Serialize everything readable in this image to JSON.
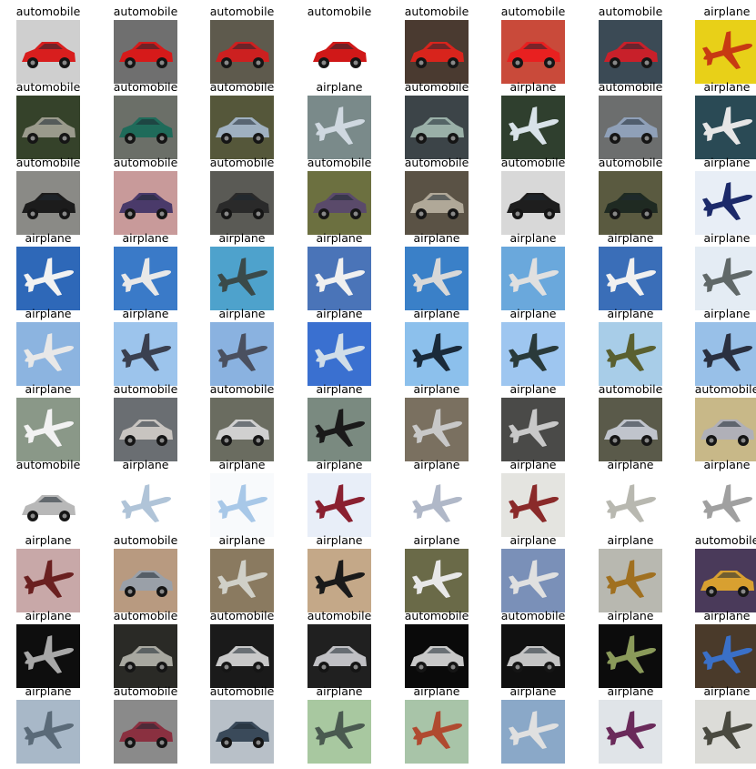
{
  "grid": {
    "columns": 8,
    "rows": [
      [
        {
          "label": "automobile",
          "icon": "car-icon",
          "bg": "#cfcfcf",
          "fg": "#d81e1e"
        },
        {
          "label": "automobile",
          "icon": "car-icon",
          "bg": "#6f6f6f",
          "fg": "#d61a1a"
        },
        {
          "label": "automobile",
          "icon": "car-icon",
          "bg": "#5e5a4d",
          "fg": "#cc2020"
        },
        {
          "label": "automobile",
          "icon": "car-icon",
          "bg": "#ffffff",
          "fg": "#d01818"
        },
        {
          "label": "automobile",
          "icon": "car-icon",
          "bg": "#4a3a30",
          "fg": "#d8241c"
        },
        {
          "label": "automobile",
          "icon": "car-icon",
          "bg": "#c94a3a",
          "fg": "#e82020"
        },
        {
          "label": "automobile",
          "icon": "car-icon",
          "bg": "#3b4a55",
          "fg": "#c8202a"
        },
        {
          "label": "airplane",
          "icon": "airplane-icon",
          "bg": "#e8d018",
          "fg": "#c73a12"
        }
      ],
      [
        {
          "label": "automobile",
          "icon": "car-icon",
          "bg": "#35422a",
          "fg": "#9a9a8c"
        },
        {
          "label": "automobile",
          "icon": "car-icon",
          "bg": "#6b6f68",
          "fg": "#1f6b5a"
        },
        {
          "label": "automobile",
          "icon": "car-icon",
          "bg": "#55573a",
          "fg": "#9fb0c0"
        },
        {
          "label": "airplane",
          "icon": "airplane-icon",
          "bg": "#7a8a8a",
          "fg": "#cfd8e0"
        },
        {
          "label": "automobile",
          "icon": "car-icon",
          "bg": "#3c4448",
          "fg": "#9ab0a8"
        },
        {
          "label": "airplane",
          "icon": "airplane-icon",
          "bg": "#2f3f2e",
          "fg": "#d8e2e8"
        },
        {
          "label": "automobile",
          "icon": "car-icon",
          "bg": "#6c6e6e",
          "fg": "#8fa0b8"
        },
        {
          "label": "airplane",
          "icon": "airplane-icon",
          "bg": "#2a4a55",
          "fg": "#e6e6e6"
        }
      ],
      [
        {
          "label": "automobile",
          "icon": "car-icon",
          "bg": "#8a8a86",
          "fg": "#1c1c1c"
        },
        {
          "label": "automobile",
          "icon": "car-icon",
          "bg": "#c89a9a",
          "fg": "#4a3a6a"
        },
        {
          "label": "automobile",
          "icon": "car-icon",
          "bg": "#5a5a55",
          "fg": "#2a2a2a"
        },
        {
          "label": "automobile",
          "icon": "car-icon",
          "bg": "#6c7040",
          "fg": "#5a4a6a"
        },
        {
          "label": "automobile",
          "icon": "car-icon",
          "bg": "#5a5245",
          "fg": "#b0a898"
        },
        {
          "label": "automobile",
          "icon": "car-icon",
          "bg": "#d8d8d8",
          "fg": "#1e1e1e"
        },
        {
          "label": "automobile",
          "icon": "car-icon",
          "bg": "#5a5a40",
          "fg": "#1f2a22"
        },
        {
          "label": "airplane",
          "icon": "airplane-icon",
          "bg": "#e8eef6",
          "fg": "#1c2a6a"
        }
      ],
      [
        {
          "label": "airplane",
          "icon": "airplane-icon",
          "bg": "#2e68b8",
          "fg": "#f2f2f2"
        },
        {
          "label": "airplane",
          "icon": "airplane-icon",
          "bg": "#3a7ac8",
          "fg": "#e8e8e8"
        },
        {
          "label": "airplane",
          "icon": "airplane-icon",
          "bg": "#4ea2cc",
          "fg": "#3a4a4a"
        },
        {
          "label": "airplane",
          "icon": "airplane-icon",
          "bg": "#4a74b8",
          "fg": "#f0f0f0"
        },
        {
          "label": "airplane",
          "icon": "airplane-icon",
          "bg": "#3a80c8",
          "fg": "#d8d8d8"
        },
        {
          "label": "airplane",
          "icon": "airplane-icon",
          "bg": "#6aa8dc",
          "fg": "#e0e0e0"
        },
        {
          "label": "airplane",
          "icon": "airplane-icon",
          "bg": "#3a6eb8",
          "fg": "#f0f0f0"
        },
        {
          "label": "airplane",
          "icon": "airplane-icon",
          "bg": "#e4ecf4",
          "fg": "#606868"
        }
      ],
      [
        {
          "label": "airplane",
          "icon": "airplane-icon",
          "bg": "#8cb4e0",
          "fg": "#e8e8e8"
        },
        {
          "label": "airplane",
          "icon": "airplane-icon",
          "bg": "#9cc4ec",
          "fg": "#3a4050"
        },
        {
          "label": "airplane",
          "icon": "airplane-icon",
          "bg": "#8ab2e0",
          "fg": "#4a5060"
        },
        {
          "label": "airplane",
          "icon": "airplane-icon",
          "bg": "#3a70d0",
          "fg": "#d0dde8"
        },
        {
          "label": "airplane",
          "icon": "airplane-icon",
          "bg": "#8cc0ec",
          "fg": "#1a2a3a"
        },
        {
          "label": "airplane",
          "icon": "airplane-icon",
          "bg": "#9ec6f0",
          "fg": "#2a3a3a"
        },
        {
          "label": "airplane",
          "icon": "airplane-icon",
          "bg": "#a8cde8",
          "fg": "#5a6030"
        },
        {
          "label": "airplane",
          "icon": "airplane-icon",
          "bg": "#98c0e8",
          "fg": "#2a3040"
        }
      ],
      [
        {
          "label": "airplane",
          "icon": "airplane-icon",
          "bg": "#8a9888",
          "fg": "#f2f2f2"
        },
        {
          "label": "automobile",
          "icon": "car-icon",
          "bg": "#6a6e72",
          "fg": "#c8c4c0"
        },
        {
          "label": "automobile",
          "icon": "car-icon",
          "bg": "#6a6c60",
          "fg": "#d0d0d0"
        },
        {
          "label": "airplane",
          "icon": "airplane-icon",
          "bg": "#7a8a80",
          "fg": "#1a1a1a"
        },
        {
          "label": "airplane",
          "icon": "airplane-icon",
          "bg": "#7a7060",
          "fg": "#c8c8c8"
        },
        {
          "label": "airplane",
          "icon": "airplane-icon",
          "bg": "#4a4a48",
          "fg": "#c8c8c8"
        },
        {
          "label": "automobile",
          "icon": "car-icon",
          "bg": "#5a5a4a",
          "fg": "#c0c4cc"
        },
        {
          "label": "automobile",
          "icon": "car-icon",
          "bg": "#c8b888",
          "fg": "#b0b0b8"
        }
      ],
      [
        {
          "label": "automobile",
          "icon": "car-icon",
          "bg": "#ffffff",
          "fg": "#b8b8b8"
        },
        {
          "label": "airplane",
          "icon": "airplane-icon",
          "bg": "#ffffff",
          "fg": "#b0c4d8"
        },
        {
          "label": "airplane",
          "icon": "airplane-icon",
          "bg": "#f8fafc",
          "fg": "#a8c8e8"
        },
        {
          "label": "airplane",
          "icon": "airplane-icon",
          "bg": "#e8eef8",
          "fg": "#8a2030"
        },
        {
          "label": "airplane",
          "icon": "airplane-icon",
          "bg": "#ffffff",
          "fg": "#b0b8c8"
        },
        {
          "label": "airplane",
          "icon": "airplane-icon",
          "bg": "#e4e4e0",
          "fg": "#8a2a2a"
        },
        {
          "label": "airplane",
          "icon": "airplane-icon",
          "bg": "#ffffff",
          "fg": "#b8b8b0"
        },
        {
          "label": "airplane",
          "icon": "airplane-icon",
          "bg": "#ffffff",
          "fg": "#a0a0a0"
        }
      ],
      [
        {
          "label": "airplane",
          "icon": "airplane-icon",
          "bg": "#c8a8a8",
          "fg": "#6a2020"
        },
        {
          "label": "automobile",
          "icon": "car-icon",
          "bg": "#b89a80",
          "fg": "#9aa0a8"
        },
        {
          "label": "airplane",
          "icon": "airplane-icon",
          "bg": "#8a7a60",
          "fg": "#d0d0c8"
        },
        {
          "label": "airplane",
          "icon": "airplane-icon",
          "bg": "#c4a888",
          "fg": "#1a1a1a"
        },
        {
          "label": "airplane",
          "icon": "airplane-icon",
          "bg": "#6a6a48",
          "fg": "#e8e8e8"
        },
        {
          "label": "airplane",
          "icon": "airplane-icon",
          "bg": "#7a90b8",
          "fg": "#e0e0e0"
        },
        {
          "label": "airplane",
          "icon": "airplane-icon",
          "bg": "#b8b8b0",
          "fg": "#a07020"
        },
        {
          "label": "automobile",
          "icon": "car-icon",
          "bg": "#4a3a5a",
          "fg": "#d8a030"
        }
      ],
      [
        {
          "label": "airplane",
          "icon": "airplane-icon",
          "bg": "#0e0e0e",
          "fg": "#a8a8a8"
        },
        {
          "label": "automobile",
          "icon": "car-icon",
          "bg": "#2a2a26",
          "fg": "#a8a8a0"
        },
        {
          "label": "automobile",
          "icon": "car-icon",
          "bg": "#1a1a1a",
          "fg": "#c8c8c8"
        },
        {
          "label": "automobile",
          "icon": "car-icon",
          "bg": "#202020",
          "fg": "#c0c0c4"
        },
        {
          "label": "automobile",
          "icon": "car-icon",
          "bg": "#0a0a0a",
          "fg": "#c8c8c8"
        },
        {
          "label": "automobile",
          "icon": "car-icon",
          "bg": "#101010",
          "fg": "#c4c4c4"
        },
        {
          "label": "airplane",
          "icon": "airplane-icon",
          "bg": "#0c0c0c",
          "fg": "#8a9a5a"
        },
        {
          "label": "airplane",
          "icon": "airplane-icon",
          "bg": "#4a3a2a",
          "fg": "#3a70c8"
        }
      ],
      [
        {
          "label": "airplane",
          "icon": "airplane-icon",
          "bg": "#a8b8c8",
          "fg": "#5a6a78"
        },
        {
          "label": "automobile",
          "icon": "car-icon",
          "bg": "#8a8a8a",
          "fg": "#8a3040"
        },
        {
          "label": "automobile",
          "icon": "car-icon",
          "bg": "#b8c0c8",
          "fg": "#3a4a5a"
        },
        {
          "label": "airplane",
          "icon": "airplane-icon",
          "bg": "#a8c8a0",
          "fg": "#4a5a50"
        },
        {
          "label": "airplane",
          "icon": "airplane-icon",
          "bg": "#a8c4a8",
          "fg": "#b04a30"
        },
        {
          "label": "airplane",
          "icon": "airplane-icon",
          "bg": "#8aa8c8",
          "fg": "#e0e0e0"
        },
        {
          "label": "airplane",
          "icon": "airplane-icon",
          "bg": "#e0e4e8",
          "fg": "#6a2a5a"
        },
        {
          "label": "airplane",
          "icon": "airplane-icon",
          "bg": "#dcdcd8",
          "fg": "#4a4a40"
        }
      ]
    ]
  }
}
